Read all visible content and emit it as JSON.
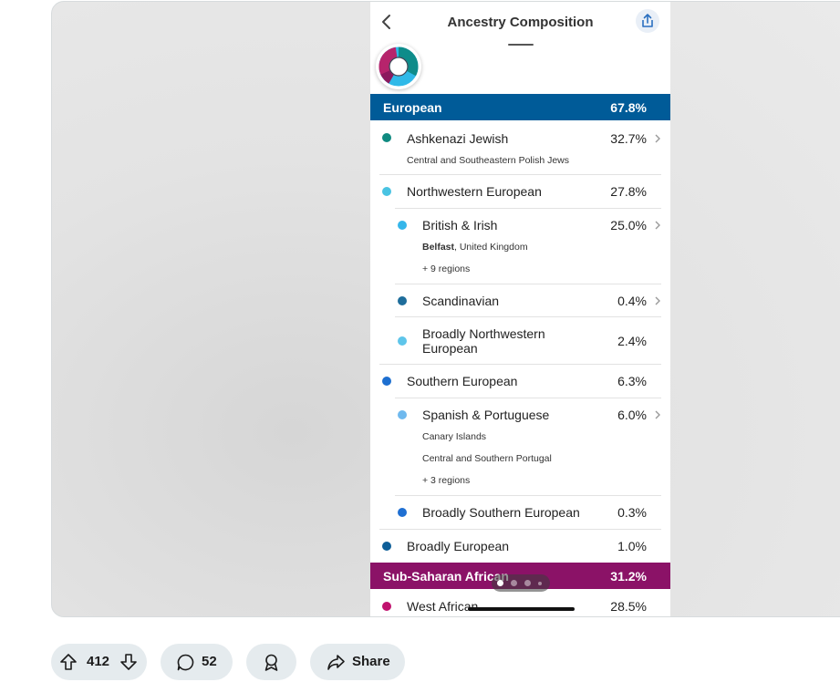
{
  "header": {
    "title": "Ancestry Composition",
    "back_icon": "chevron-left-icon",
    "share_icon": "share-icon"
  },
  "donut": {
    "colors": [
      "#0e8c8a",
      "#b6246c",
      "#2fb9e8",
      "#8b1a5e"
    ]
  },
  "sections": [
    {
      "name": "European",
      "pct": "67.8%",
      "color": "#005b98"
    },
    {
      "name": "Sub-Saharan African",
      "pct": "31.2%",
      "color": "#8b1267"
    }
  ],
  "rows": [
    {
      "label": "Ashkenazi Jewish",
      "pct": "32.7%",
      "color": "#0f8a80",
      "subs": [
        "Central and Southeastern Polish Jews"
      ]
    },
    {
      "label": "Northwestern European",
      "pct": "27.8%",
      "color": "#49c3e2"
    },
    {
      "label": "British & Irish",
      "pct": "25.0%",
      "color": "#35b6ea",
      "sub_bold": "Belfast",
      "sub_rest": ", United Kingdom",
      "more": "+ 9 regions"
    },
    {
      "label": "Scandinavian",
      "pct": "0.4%",
      "color": "#1e6d9b"
    },
    {
      "label": "Broadly Northwestern European",
      "pct": "2.4%",
      "color": "#5ec5ea"
    },
    {
      "label": "Southern European",
      "pct": "6.3%",
      "color": "#1d6fd0"
    },
    {
      "label": "Spanish & Portuguese",
      "pct": "6.0%",
      "color": "#6fb9ee",
      "subs": [
        "Canary Islands",
        "Central and Southern Portugal",
        "+ 3 regions"
      ]
    },
    {
      "label": "Broadly Southern European",
      "pct": "0.3%",
      "color": "#1f6fd2"
    },
    {
      "label": "Broadly European",
      "pct": "1.0%",
      "color": "#0d5e98"
    },
    {
      "label": "West African",
      "pct": "28.5%",
      "color": "#c0126e"
    }
  ],
  "actions": {
    "upvotes": "412",
    "comments": "52",
    "share_label": "Share"
  }
}
